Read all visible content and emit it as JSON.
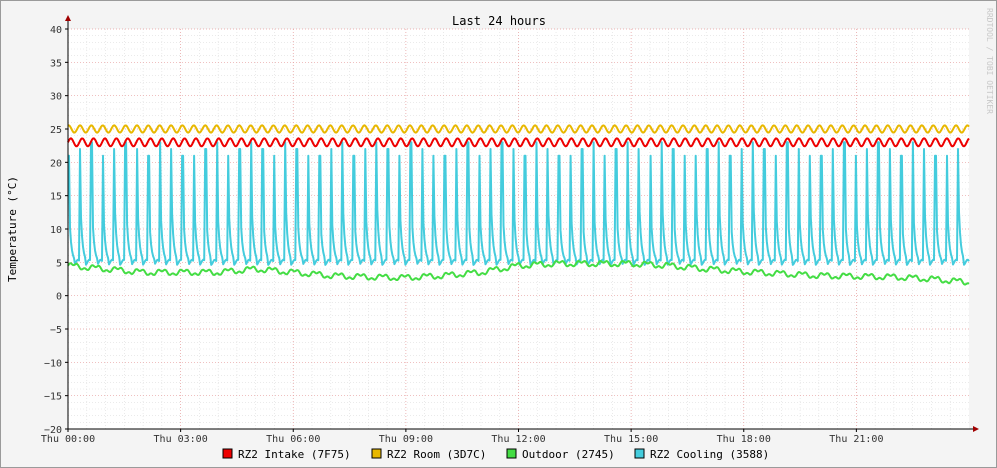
{
  "chart_data": {
    "type": "line",
    "title": "Last 24 hours",
    "ylabel": "Temperature (°C)",
    "watermark": "RRDTOOL / TOBI OETIKER",
    "ylim": [
      -20,
      40
    ],
    "yticks": [
      40,
      35,
      30,
      25,
      20,
      15,
      10,
      5,
      0,
      -5,
      -10,
      -15,
      -20
    ],
    "xlim_hours": [
      0,
      24
    ],
    "xticks": [
      {
        "hour": 0,
        "label": "Thu 00:00"
      },
      {
        "hour": 3,
        "label": "Thu 03:00"
      },
      {
        "hour": 6,
        "label": "Thu 06:00"
      },
      {
        "hour": 9,
        "label": "Thu 09:00"
      },
      {
        "hour": 12,
        "label": "Thu 12:00"
      },
      {
        "hour": 15,
        "label": "Thu 15:00"
      },
      {
        "hour": 18,
        "label": "Thu 18:00"
      },
      {
        "hour": 21,
        "label": "Thu 21:00"
      }
    ],
    "legend_position": "bottom",
    "grid": true,
    "series": [
      {
        "name": "RZ2 Intake (7F75)",
        "color": "#ee0000",
        "x": [
          0,
          1,
          2,
          3,
          4,
          5,
          6,
          7,
          8,
          9,
          10,
          11,
          12,
          13,
          14,
          15,
          16,
          17,
          18,
          19,
          20,
          21,
          22,
          23,
          24
        ],
        "y": [
          23,
          23,
          23,
          23,
          23,
          23,
          23,
          23,
          23,
          23,
          23,
          23,
          23,
          23,
          23,
          23,
          23,
          23,
          23,
          23,
          23,
          23,
          23,
          23,
          23
        ]
      },
      {
        "name": "RZ2 Room (3D7C)",
        "color": "#e8b800",
        "x": [
          0,
          1,
          2,
          3,
          4,
          5,
          6,
          7,
          8,
          9,
          10,
          11,
          12,
          13,
          14,
          15,
          16,
          17,
          18,
          19,
          20,
          21,
          22,
          23,
          24
        ],
        "y": [
          25,
          25,
          25,
          25,
          25,
          25,
          25,
          25,
          25,
          25,
          25,
          25,
          25,
          25,
          25,
          25,
          25,
          25,
          25,
          25,
          25,
          25,
          25,
          25,
          25
        ]
      },
      {
        "name": "Outdoor (2745)",
        "color": "#44dd44",
        "x": [
          0,
          1,
          2,
          3,
          4,
          5,
          6,
          7,
          8,
          9,
          10,
          11,
          12,
          13,
          14,
          15,
          16,
          17,
          18,
          19,
          20,
          21,
          22,
          23,
          24
        ],
        "y": [
          4.5,
          4,
          3.5,
          3.5,
          3.5,
          4,
          3.5,
          3,
          2.8,
          2.7,
          3,
          3.5,
          4.5,
          4.8,
          4.8,
          4.8,
          4.5,
          4,
          3.6,
          3.3,
          3,
          2.9,
          2.8,
          2.5,
          2
        ]
      },
      {
        "name": "RZ2 Cooling (3588)",
        "color": "#44ccdd",
        "x": [
          0,
          1,
          2,
          3,
          4,
          5,
          6,
          7,
          8,
          9,
          10,
          11,
          12,
          13,
          14,
          15,
          16,
          17,
          18,
          19,
          20,
          21,
          22,
          23,
          24
        ],
        "y": [
          5,
          5,
          5,
          5,
          5,
          5,
          5,
          5,
          5,
          5,
          5,
          5,
          5,
          5,
          5,
          5,
          5,
          5,
          5,
          5,
          5,
          5,
          5,
          5,
          5
        ],
        "peaks": [
          21,
          22,
          23,
          21,
          22,
          23,
          22,
          21,
          23,
          22,
          21
        ]
      }
    ]
  }
}
